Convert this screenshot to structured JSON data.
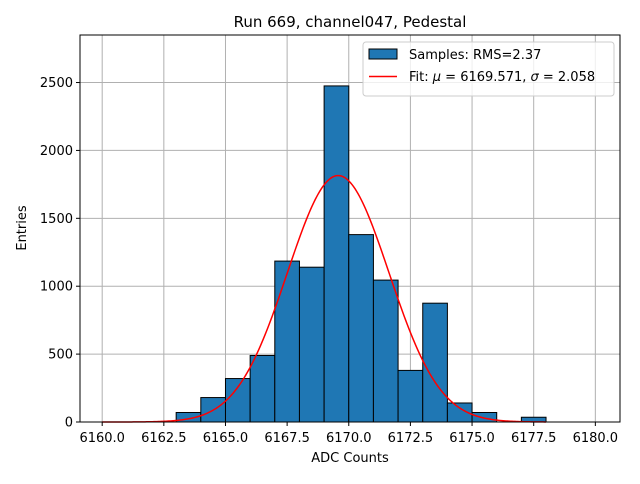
{
  "chart_data": {
    "type": "bar",
    "title": "Run 669, channel047, Pedestal",
    "xlabel": "ADC Counts",
    "ylabel": "Entries",
    "xlim": [
      6159.1,
      6181.0
    ],
    "ylim": [
      0,
      2850
    ],
    "grid": true,
    "x_ticks": [
      6160.0,
      6162.5,
      6165.0,
      6167.5,
      6170.0,
      6172.5,
      6175.0,
      6177.5,
      6180.0
    ],
    "x_tick_labels": [
      "6160.0",
      "6162.5",
      "6165.0",
      "6167.5",
      "6170.0",
      "6172.5",
      "6175.0",
      "6177.5",
      "6180.0"
    ],
    "y_ticks": [
      0,
      500,
      1000,
      1500,
      2000,
      2500
    ],
    "y_tick_labels": [
      "0",
      "500",
      "1000",
      "1500",
      "2000",
      "2500"
    ],
    "bin_width": 1.0,
    "bins": [
      {
        "left": 6163,
        "value": 70
      },
      {
        "left": 6164,
        "value": 180
      },
      {
        "left": 6165,
        "value": 320
      },
      {
        "left": 6166,
        "value": 490
      },
      {
        "left": 6167,
        "value": 1185
      },
      {
        "left": 6168,
        "value": 1140
      },
      {
        "left": 6169,
        "value": 2475
      },
      {
        "left": 6170,
        "value": 1380
      },
      {
        "left": 6171,
        "value": 1045
      },
      {
        "left": 6172,
        "value": 380
      },
      {
        "left": 6173,
        "value": 875
      },
      {
        "left": 6174,
        "value": 140
      },
      {
        "left": 6175,
        "value": 70
      },
      {
        "left": 6177,
        "value": 35
      }
    ],
    "fit": {
      "mu": 6169.571,
      "sigma": 2.058,
      "amplitude": 1815,
      "x_range": [
        6160.0,
        6178.0
      ]
    },
    "legend": {
      "placement": "top-right",
      "entries": [
        {
          "label": "Samples: RMS=2.37",
          "kind": "patch",
          "color": "#1f77b4"
        },
        {
          "label_prefix": "Fit: ",
          "label_mu_symbol": "μ",
          "label_mu_value": " = 6169.571, ",
          "label_sigma_symbol": "σ",
          "label_sigma_value": " = 2.058",
          "kind": "line",
          "color": "#ff0000"
        }
      ]
    },
    "colors": {
      "bar_fill": "#1f77b4",
      "bar_edge": "#000000",
      "fit_line": "#ff0000",
      "grid": "#b0b0b0"
    }
  }
}
